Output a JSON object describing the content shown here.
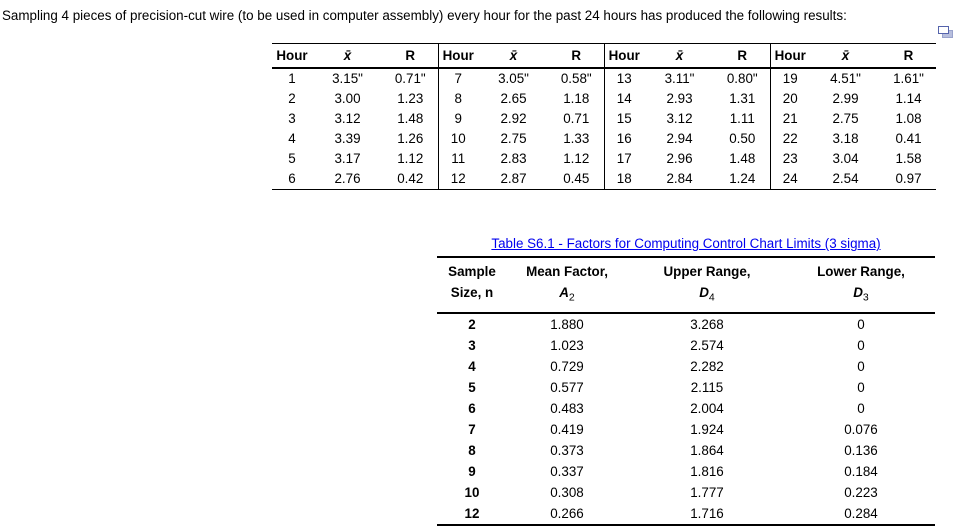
{
  "colors": {
    "link": "#0000ee",
    "icon_border": "#5563ac",
    "icon_back": "#b7bedd",
    "icon_back_border": "#99a2cc"
  },
  "intro": "Sampling 4 pieces of precision-cut wire (to be used in computer assembly) every hour for the past 24 hours has produced the following results:",
  "icons": {
    "top_right": "copy"
  },
  "wire_table": {
    "col_headers": {
      "hour": "Hour",
      "xbar": "x̄",
      "r": "R"
    },
    "rows": [
      [
        "1",
        "3.15\"",
        "0.71\"",
        "7",
        "3.05\"",
        "0.58\"",
        "13",
        "3.11\"",
        "0.80\"",
        "19",
        "4.51\"",
        "1.61\""
      ],
      [
        "2",
        "3.00",
        "1.23",
        "8",
        "2.65",
        "1.18",
        "14",
        "2.93",
        "1.31",
        "20",
        "2.99",
        "1.14"
      ],
      [
        "3",
        "3.12",
        "1.48",
        "9",
        "2.92",
        "0.71",
        "15",
        "3.12",
        "1.11",
        "21",
        "2.75",
        "1.08"
      ],
      [
        "4",
        "3.39",
        "1.26",
        "10",
        "2.75",
        "1.33",
        "16",
        "2.94",
        "0.50",
        "22",
        "3.18",
        "0.41"
      ],
      [
        "5",
        "3.17",
        "1.12",
        "11",
        "2.83",
        "1.12",
        "17",
        "2.96",
        "1.48",
        "23",
        "3.04",
        "1.58"
      ],
      [
        "6",
        "2.76",
        "0.42",
        "12",
        "2.87",
        "0.45",
        "18",
        "2.84",
        "1.24",
        "24",
        "2.54",
        "0.97"
      ]
    ]
  },
  "factors_table": {
    "title": "Table S6.1 - Factors for Computing Control Chart Limits (3 sigma)",
    "headers": {
      "n": {
        "l1": "Sample",
        "l2": "Size, n"
      },
      "a2": {
        "l1": "Mean Factor,",
        "sym": "A",
        "sub": "2"
      },
      "d4": {
        "l1": "Upper Range,",
        "sym": "D",
        "sub": "4"
      },
      "d3": {
        "l1": "Lower Range,",
        "sym": "D",
        "sub": "3"
      }
    },
    "rows": [
      [
        "2",
        "1.880",
        "3.268",
        "0"
      ],
      [
        "3",
        "1.023",
        "2.574",
        "0"
      ],
      [
        "4",
        "0.729",
        "2.282",
        "0"
      ],
      [
        "5",
        "0.577",
        "2.115",
        "0"
      ],
      [
        "6",
        "0.483",
        "2.004",
        "0"
      ],
      [
        "7",
        "0.419",
        "1.924",
        "0.076"
      ],
      [
        "8",
        "0.373",
        "1.864",
        "0.136"
      ],
      [
        "9",
        "0.337",
        "1.816",
        "0.184"
      ],
      [
        "10",
        "0.308",
        "1.777",
        "0.223"
      ],
      [
        "12",
        "0.266",
        "1.716",
        "0.284"
      ]
    ]
  }
}
